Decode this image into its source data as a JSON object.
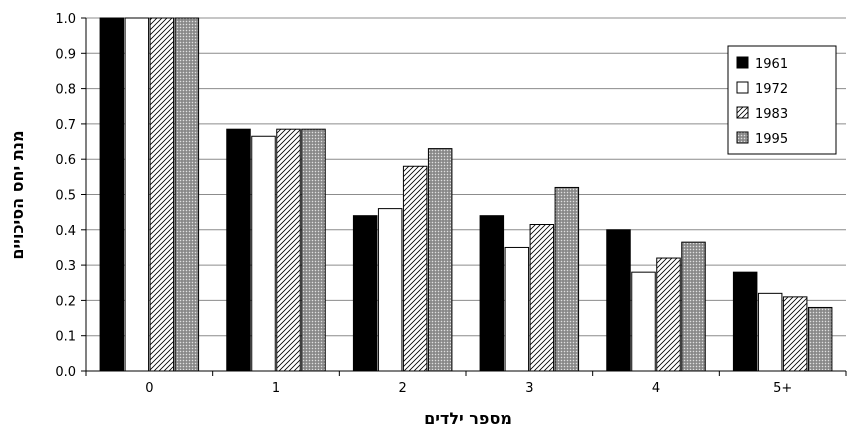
{
  "chart_data": {
    "type": "bar",
    "xlabel": "מספר ילדים",
    "ylabel": "מנת יחס הסיכויים",
    "categories": [
      "0",
      "1",
      "2",
      "3",
      "4",
      "5+"
    ],
    "ylim": [
      0,
      1.0
    ],
    "yticks": [
      "0.0",
      "0.1",
      "0.2",
      "0.3",
      "0.4",
      "0.5",
      "0.6",
      "0.7",
      "0.8",
      "0.9",
      "1.0"
    ],
    "grid": true,
    "legend_position": "top-right",
    "series": [
      {
        "name": "1961",
        "fill": "black",
        "values": [
          1.0,
          0.685,
          0.44,
          0.44,
          0.4,
          0.28
        ]
      },
      {
        "name": "1972",
        "fill": "white",
        "values": [
          1.0,
          0.665,
          0.46,
          0.35,
          0.28,
          0.22
        ]
      },
      {
        "name": "1983",
        "fill": "hatched",
        "values": [
          1.0,
          0.685,
          0.58,
          0.415,
          0.32,
          0.21
        ]
      },
      {
        "name": "1995",
        "fill": "dotted-gray",
        "values": [
          1.0,
          0.685,
          0.63,
          0.52,
          0.365,
          0.18
        ]
      }
    ]
  }
}
